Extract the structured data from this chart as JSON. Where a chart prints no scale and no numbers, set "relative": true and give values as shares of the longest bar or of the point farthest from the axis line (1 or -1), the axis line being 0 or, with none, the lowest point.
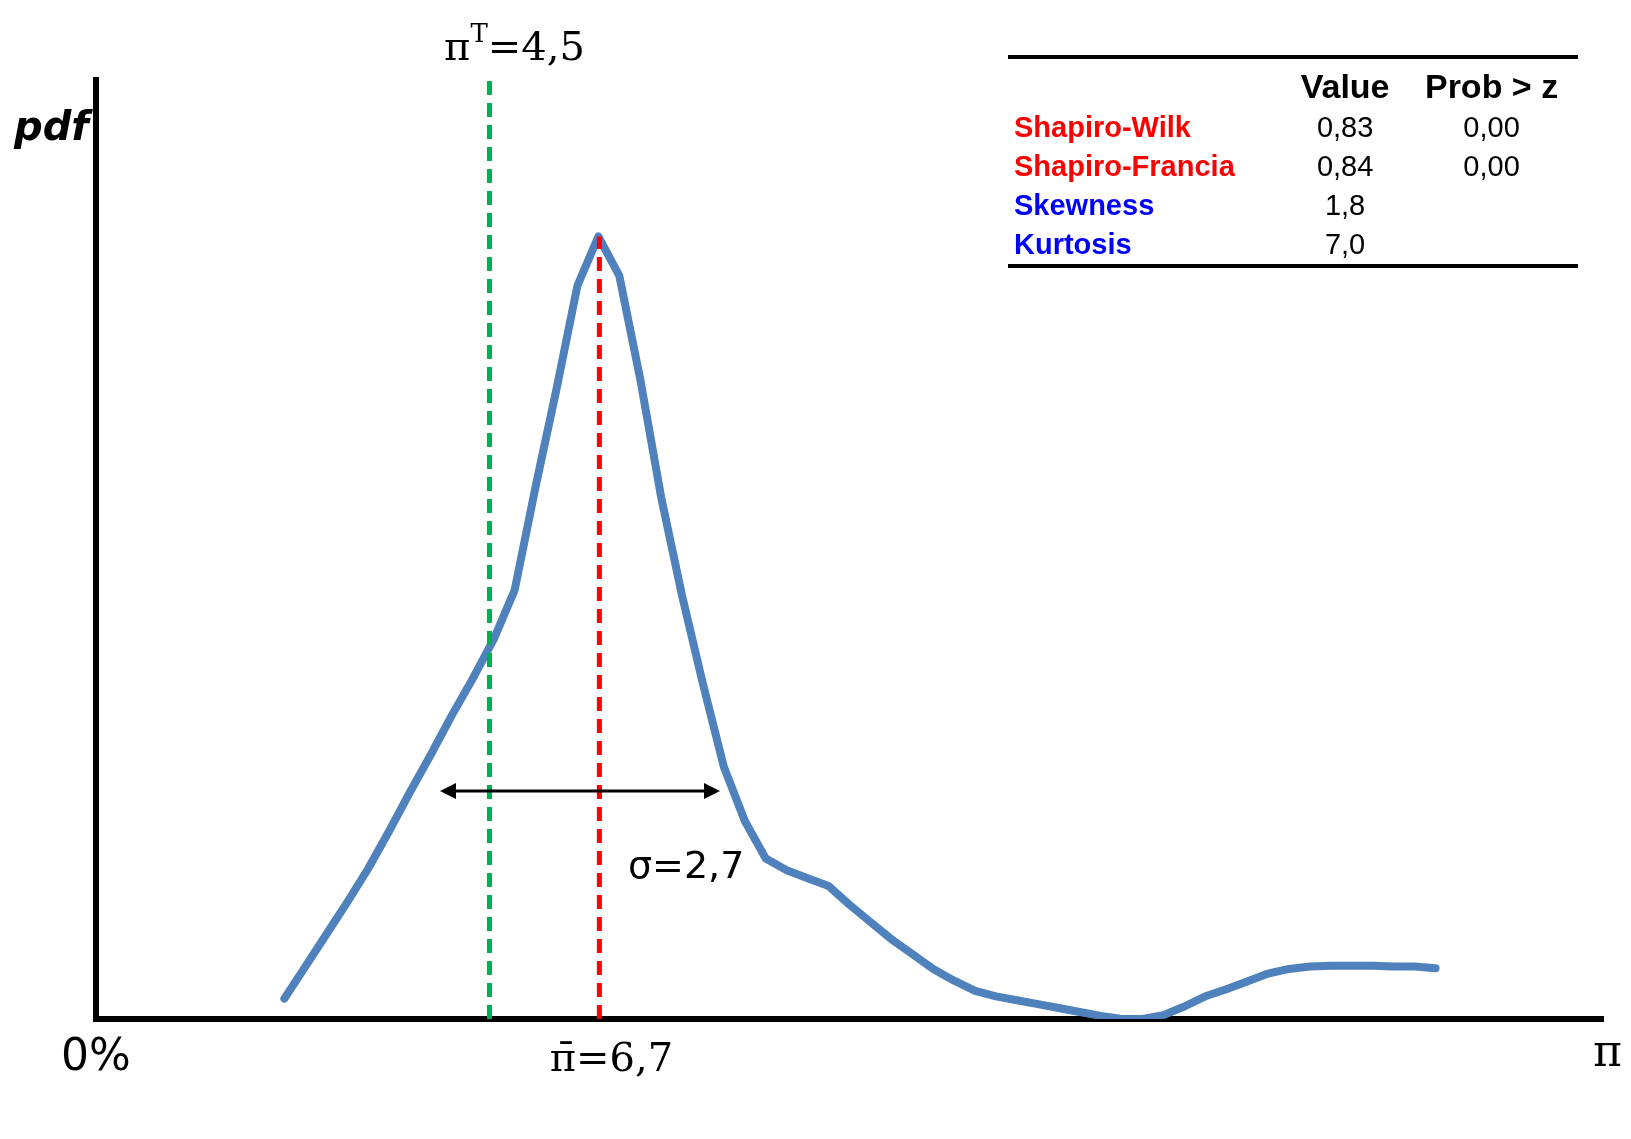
{
  "chart_data": [
    {
      "type": "line",
      "relative": true,
      "xlabel": "π",
      "ylabel": "pdf",
      "color": "#4f81bd",
      "categories": [
        null,
        null,
        null,
        null,
        null,
        null,
        null,
        null,
        null,
        null,
        null,
        null,
        null,
        null,
        null,
        null,
        null,
        null,
        null,
        null,
        null,
        null,
        null,
        null,
        null,
        null,
        null,
        null,
        null,
        null,
        null,
        null,
        null,
        null,
        null,
        null,
        null,
        null,
        null,
        null,
        null,
        null,
        null,
        null,
        null,
        null,
        null,
        null,
        null,
        null,
        null,
        null,
        null,
        null,
        null,
        null,
        null,
        null,
        null,
        null,
        null,
        null,
        null,
        null,
        null,
        null,
        null,
        null,
        null,
        null,
        null,
        null,
        null
      ],
      "values": [
        null,
        null,
        null,
        null,
        null,
        null,
        null,
        null,
        null,
        0.026,
        0.067,
        0.108,
        0.149,
        0.192,
        0.24,
        0.29,
        0.338,
        0.388,
        0.435,
        0.485,
        0.548,
        0.68,
        0.805,
        0.937,
        1,
        0.95,
        0.818,
        0.667,
        0.541,
        0.428,
        0.322,
        0.253,
        0.205,
        0.19,
        0.18,
        0.17,
        0.146,
        0.124,
        0.102,
        0.083,
        0.064,
        0.049,
        0.036,
        0.029,
        0.024,
        0.019,
        0.014,
        0.009,
        0.004,
        0,
        0,
        0.005,
        0.016,
        0.029,
        0.038,
        0.048,
        0.058,
        0.064,
        0.067,
        0.068,
        0.068,
        0.068,
        0.067,
        0.067,
        0.065,
        null,
        null,
        null,
        null,
        null,
        null,
        null,
        null
      ],
      "annotations": [
        "σ=2,7",
        "0%",
        "π$^{T}$=4,5",
        "π̄=6,7"
      ]
    },
    {
      "type": "other",
      "categories": [
        "Shapiro-Wilk",
        "Shapiro-Francia",
        "Skewness",
        "Kurtosis"
      ],
      "colors": [
        "#ff0000",
        "#ff0000",
        "#0000ff",
        "#0000ff"
      ],
      "series": [
        {
          "name": "Value",
          "values": [
            0.83,
            0.84,
            1.8,
            7.0
          ],
          "value_labels": [
            "0,83",
            "0,84",
            "1,8",
            "7,0"
          ]
        },
        {
          "name": "Prob > z",
          "values": [
            0.0,
            0.0,
            null,
            null
          ],
          "value_labels": [
            "0,00",
            "0,00",
            null,
            null
          ]
        }
      ]
    }
  ]
}
